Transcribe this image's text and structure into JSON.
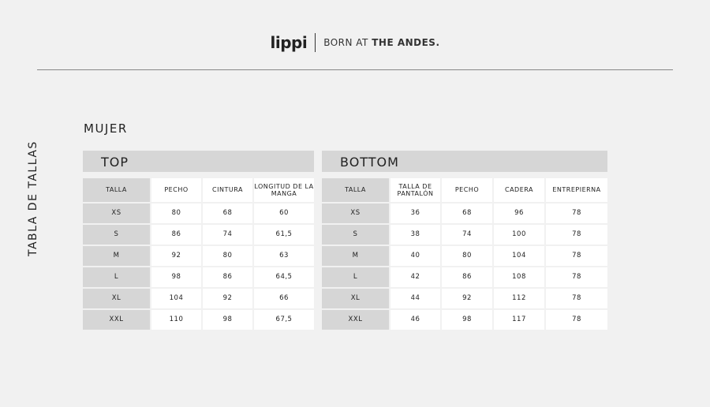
{
  "header": {
    "logo": "lippi",
    "tagline_light": "BORN AT ",
    "tagline_bold": "THE ANDES."
  },
  "section": "MUJER",
  "side_title": "TABLA DE TALLAS",
  "top": {
    "title": "TOP",
    "columns": [
      "TALLA",
      "PECHO",
      "CINTURA",
      "LONGITUD DE LA MANGA"
    ],
    "rows": [
      [
        "XS",
        "80",
        "68",
        "60"
      ],
      [
        "S",
        "86",
        "74",
        "61,5"
      ],
      [
        "M",
        "92",
        "80",
        "63"
      ],
      [
        "L",
        "98",
        "86",
        "64,5"
      ],
      [
        "XL",
        "104",
        "92",
        "66"
      ],
      [
        "XXL",
        "110",
        "98",
        "67,5"
      ]
    ]
  },
  "bottom": {
    "title": "BOTTOM",
    "columns": [
      "TALLA",
      "TALLA DE PANTALÓN",
      "PECHO",
      "CADERA",
      "ENTREPIERNA"
    ],
    "rows": [
      [
        "XS",
        "36",
        "68",
        "96",
        "78"
      ],
      [
        "S",
        "38",
        "74",
        "100",
        "78"
      ],
      [
        "M",
        "40",
        "80",
        "104",
        "78"
      ],
      [
        "L",
        "42",
        "86",
        "108",
        "78"
      ],
      [
        "XL",
        "44",
        "92",
        "112",
        "78"
      ],
      [
        "XXL",
        "46",
        "98",
        "117",
        "78"
      ]
    ]
  }
}
